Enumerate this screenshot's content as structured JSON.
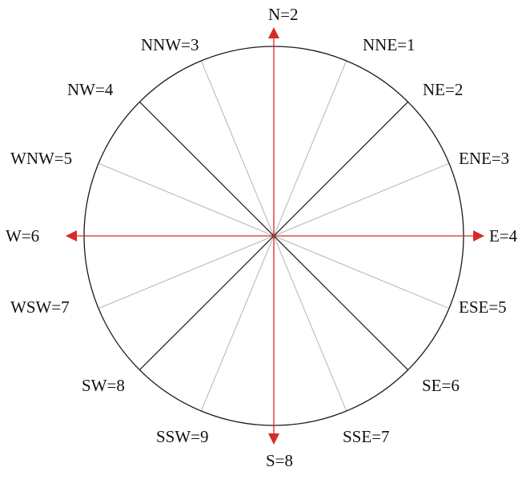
{
  "diagram": {
    "directions": [
      {
        "key": "N",
        "label": "N=2"
      },
      {
        "key": "NNE",
        "label": "NNE=1"
      },
      {
        "key": "NE",
        "label": "NE=2"
      },
      {
        "key": "ENE",
        "label": "ENE=3"
      },
      {
        "key": "E",
        "label": "E=4"
      },
      {
        "key": "ESE",
        "label": "ESE=5"
      },
      {
        "key": "SE",
        "label": "SE=6"
      },
      {
        "key": "SSE",
        "label": "SSE=7"
      },
      {
        "key": "S",
        "label": "S=8"
      },
      {
        "key": "SSW",
        "label": "SSW=9"
      },
      {
        "key": "SW",
        "label": "SW=8"
      },
      {
        "key": "WSW",
        "label": "WSW=7"
      },
      {
        "key": "W",
        "label": "W=6"
      },
      {
        "key": "WNW",
        "label": "WNW=5"
      },
      {
        "key": "NW",
        "label": "NW=4"
      },
      {
        "key": "NNW",
        "label": "NNW=3"
      }
    ],
    "colors": {
      "axis_arrows": "#d62a2a",
      "circle": "#1a1a1a",
      "diagonal_lines": "#1a1a1a",
      "minor_lines": "#b5b5b5",
      "text": "#111111"
    }
  }
}
